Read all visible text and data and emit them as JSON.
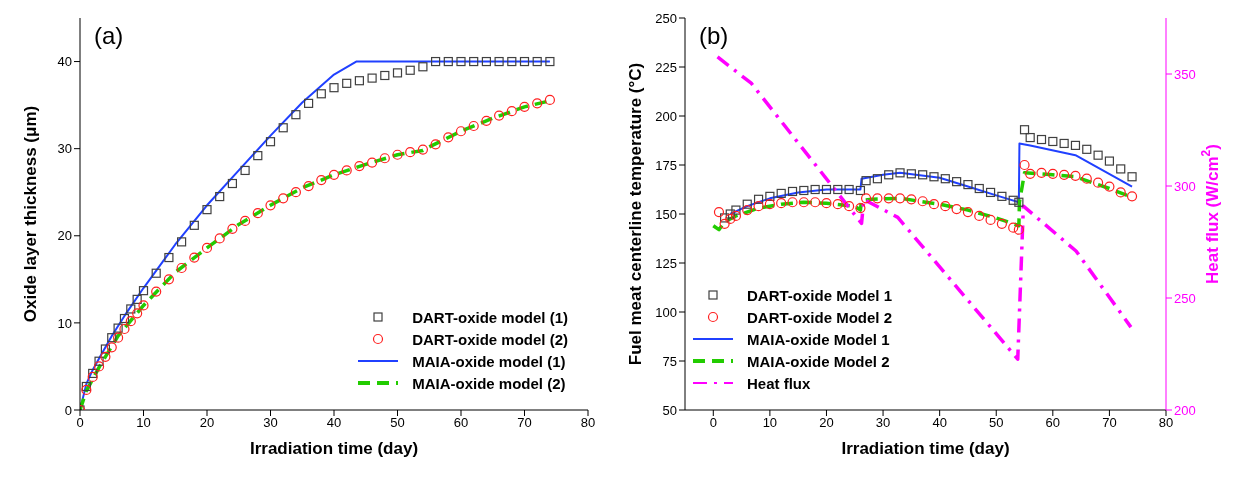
{
  "chart_data": [
    {
      "type": "scatter",
      "title": "(a)",
      "xlabel": "Irradiation time (day)",
      "ylabel": "Oxide layer thickness (μm)",
      "xlim": [
        0,
        80
      ],
      "xticks": [
        0,
        10,
        20,
        30,
        40,
        50,
        60,
        70,
        80
      ],
      "ylim": [
        0,
        45
      ],
      "yticks": [
        0,
        10,
        20,
        30,
        40
      ],
      "legend": "bottom right",
      "series": [
        {
          "name": "DART-oxide model (1)",
          "marker": "square",
          "color": "#404040",
          "x": [
            0,
            1,
            2,
            3,
            4,
            5,
            6,
            7,
            8,
            9,
            10,
            12,
            14,
            16,
            18,
            20,
            22,
            24,
            26,
            28,
            30,
            32,
            34,
            36,
            38,
            40,
            42,
            44,
            46,
            48,
            50,
            52,
            54,
            56,
            58,
            60,
            62,
            64,
            66,
            68,
            70,
            72,
            74
          ],
          "values": [
            0,
            2.7,
            4.2,
            5.6,
            7,
            8.3,
            9.4,
            10.5,
            11.6,
            12.7,
            13.7,
            15.7,
            17.5,
            19.3,
            21.2,
            23,
            24.5,
            26,
            27.5,
            29.2,
            30.8,
            32.4,
            33.9,
            35.2,
            36.3,
            37,
            37.5,
            37.8,
            38.1,
            38.4,
            38.7,
            39,
            39.4,
            40,
            40,
            40,
            40,
            40,
            40,
            40,
            40,
            40,
            40
          ]
        },
        {
          "name": "DART-oxide model (2)",
          "marker": "circle",
          "color": "#ff2020",
          "x": [
            0,
            1,
            2,
            3,
            4,
            5,
            6,
            7,
            8,
            9,
            10,
            12,
            14,
            16,
            18,
            20,
            22,
            24,
            26,
            28,
            30,
            32,
            34,
            36,
            38,
            40,
            42,
            44,
            46,
            48,
            50,
            52,
            54,
            56,
            58,
            60,
            62,
            64,
            66,
            68,
            70,
            72,
            74
          ],
          "values": [
            0,
            2.3,
            3.8,
            5,
            6.1,
            7.2,
            8.3,
            9.3,
            10.2,
            11.1,
            12,
            13.6,
            15,
            16.3,
            17.5,
            18.6,
            19.7,
            20.8,
            21.7,
            22.6,
            23.5,
            24.3,
            25,
            25.7,
            26.4,
            27,
            27.5,
            28,
            28.4,
            28.9,
            29.3,
            29.6,
            29.9,
            30.5,
            31.3,
            32,
            32.6,
            33.2,
            33.8,
            34.3,
            34.8,
            35.2,
            35.6
          ]
        },
        {
          "name": "MAIA-oxide model (1)",
          "type": "line",
          "marker": "none",
          "line_style": "solid",
          "color": "#2040ff",
          "x": [
            0,
            1,
            2,
            3,
            5,
            7,
            10,
            15,
            20,
            25,
            30,
            35,
            40,
            43.5,
            74
          ],
          "values": [
            0,
            3,
            4.6,
            5.9,
            8.5,
            10.8,
            14,
            19,
            23.5,
            27.5,
            31.5,
            35.3,
            38.5,
            40,
            40
          ]
        },
        {
          "name": "MAIA-oxide model (2)",
          "type": "line",
          "marker": "none",
          "line_style": "dashed",
          "color": "#22cc00",
          "x": [
            0,
            1,
            3,
            6,
            10,
            15,
            20,
            25,
            30,
            35,
            40,
            45,
            50,
            54,
            55,
            60,
            65,
            70,
            74
          ],
          "values": [
            0,
            2.2,
            4.9,
            8.5,
            12,
            15.8,
            18.6,
            21.3,
            23.5,
            25.5,
            27,
            28.2,
            29.3,
            29.8,
            30.2,
            32,
            33.5,
            34.8,
            35.5
          ]
        }
      ]
    },
    {
      "type": "scatter",
      "title": "(b)",
      "xlabel": "Irradiation time (day)",
      "ylabel": "Fuel meat centerline temperature (°C)",
      "y2label": "Heat flux (W/cm$^{2}$)",
      "xlim": [
        -5,
        80
      ],
      "xticks": [
        0,
        10,
        20,
        30,
        40,
        50,
        60,
        70,
        80
      ],
      "ylim": [
        50,
        250
      ],
      "yticks": [
        50,
        75,
        100,
        125,
        150,
        175,
        200,
        225,
        250
      ],
      "y2lim": [
        200,
        375
      ],
      "y2ticks": [
        200,
        250,
        300,
        350
      ],
      "legend": "bottom left",
      "series": [
        {
          "name": "DART-oxide Model 1",
          "marker": "square",
          "color": "#404040",
          "x": [
            2,
            3,
            4,
            6,
            8,
            10,
            12,
            14,
            16,
            18,
            20,
            22,
            24,
            26,
            27,
            29,
            31,
            33,
            35,
            37,
            39,
            41,
            43,
            45,
            47,
            49,
            51,
            53,
            54,
            55,
            56,
            58,
            60,
            62,
            64,
            66,
            68,
            70,
            72,
            74
          ],
          "values": [
            148,
            150,
            152,
            155,
            157.5,
            159,
            160.5,
            161.5,
            162,
            162.5,
            162.5,
            162.5,
            162.5,
            162,
            167,
            168,
            170,
            171,
            170.5,
            170,
            169,
            168,
            166.5,
            165,
            163,
            161,
            159,
            157,
            156,
            193,
            189,
            188,
            187,
            186,
            185,
            183,
            180,
            177,
            173,
            169
          ]
        },
        {
          "name": "DART-oxide Model 2",
          "marker": "circle",
          "color": "#ff2020",
          "x": [
            1,
            2,
            3,
            4,
            6,
            8,
            10,
            12,
            14,
            16,
            18,
            20,
            22,
            24,
            26,
            27,
            29,
            31,
            33,
            35,
            37,
            39,
            41,
            43,
            45,
            47,
            49,
            51,
            53,
            54,
            55,
            56,
            58,
            60,
            62,
            64,
            66,
            68,
            70,
            72,
            74
          ],
          "values": [
            151,
            145,
            147.5,
            149,
            152,
            154,
            155,
            155.5,
            156,
            156,
            156,
            155.5,
            155,
            154,
            153,
            158,
            158,
            158,
            158,
            157.5,
            156.5,
            155,
            154,
            152.5,
            151,
            149,
            147,
            145,
            143,
            142,
            175,
            170.5,
            171,
            170.5,
            170,
            169.5,
            168,
            166,
            164,
            161,
            159
          ]
        },
        {
          "name": "MAIA-oxide Model 1",
          "type": "line",
          "marker": "none",
          "line_style": "solid",
          "color": "#2040ff",
          "x": [
            3,
            6,
            10,
            15,
            20,
            26,
            26.2,
            30,
            33,
            40,
            45,
            50,
            54,
            54.1,
            56,
            64,
            74
          ],
          "values": [
            150,
            154,
            158,
            161,
            162.5,
            162.5,
            168,
            170,
            171,
            168.5,
            164,
            159.5,
            156,
            186,
            185,
            180,
            164
          ]
        },
        {
          "name": "MAIA-oxide Model 2",
          "type": "line",
          "marker": "none",
          "line_style": "dashed",
          "color": "#22cc00",
          "x": [
            0,
            1,
            2,
            4,
            8,
            12,
            16,
            20,
            25,
            26,
            26.2,
            28,
            33,
            40,
            45,
            50,
            54,
            54.1,
            55,
            60,
            64,
            70,
            74
          ],
          "values": [
            144,
            142,
            146,
            149,
            153,
            155,
            156,
            155.5,
            154,
            152,
            157,
            157.5,
            158,
            155,
            152,
            148,
            144,
            156,
            171,
            170,
            169,
            163,
            158.5
          ]
        },
        {
          "name": "Heat flux",
          "type": "line",
          "axis": "y2",
          "marker": "none",
          "line_style": "dashdot",
          "color": "#ff00ff",
          "x": [
            0.75,
            6.7,
            26.2,
            26.6,
            32.6,
            53.8,
            54.8,
            64.1,
            73.8
          ],
          "values": [
            357.6,
            345.9,
            283.3,
            294,
            286,
            222.7,
            291,
            271,
            237
          ]
        }
      ]
    }
  ]
}
